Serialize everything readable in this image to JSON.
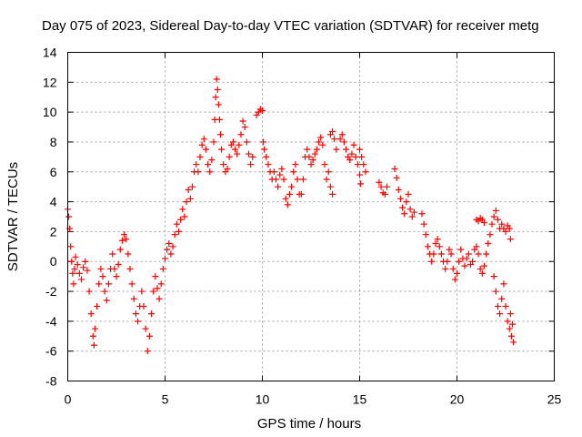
{
  "chart_data": {
    "type": "scatter",
    "title": "Day 075 of 2023, Sidereal Day-to-day VTEC variation (SDTVAR) for receiver metg",
    "xlabel": "GPS time / hours",
    "ylabel": "SDTVAR / TECUs",
    "xlim": [
      0,
      25
    ],
    "ylim": [
      -8,
      14
    ],
    "xticks": [
      0,
      5,
      10,
      15,
      20,
      25
    ],
    "yticks": [
      -8,
      -6,
      -4,
      -2,
      0,
      2,
      4,
      6,
      8,
      10,
      12,
      14
    ],
    "grid": true,
    "marker": "plus",
    "color": "#ff0000",
    "series": [
      {
        "name": "SDTVAR",
        "points": [
          [
            0.0,
            3.5
          ],
          [
            0.05,
            3.0
          ],
          [
            0.1,
            2.2
          ],
          [
            0.15,
            1.0
          ],
          [
            0.2,
            0.0
          ],
          [
            0.25,
            -0.8
          ],
          [
            0.3,
            -1.5
          ],
          [
            0.35,
            -0.5
          ],
          [
            0.4,
            0.3
          ],
          [
            0.5,
            -0.2
          ],
          [
            0.6,
            -0.8
          ],
          [
            0.7,
            -1.2
          ],
          [
            0.8,
            -0.4
          ],
          [
            0.9,
            0.0
          ],
          [
            1.0,
            -0.6
          ],
          [
            1.1,
            -2.0
          ],
          [
            1.2,
            -3.5
          ],
          [
            1.3,
            -5.0
          ],
          [
            1.35,
            -5.6
          ],
          [
            1.4,
            -4.5
          ],
          [
            1.5,
            -3.0
          ],
          [
            1.6,
            -1.5
          ],
          [
            1.7,
            -0.5
          ],
          [
            1.8,
            -1.0
          ],
          [
            1.9,
            -2.0
          ],
          [
            2.0,
            -2.6
          ],
          [
            2.1,
            -1.5
          ],
          [
            2.2,
            -0.5
          ],
          [
            2.3,
            0.5
          ],
          [
            2.4,
            -0.5
          ],
          [
            2.5,
            -1.0
          ],
          [
            2.6,
            -0.2
          ],
          [
            2.7,
            0.8
          ],
          [
            2.8,
            1.4
          ],
          [
            2.9,
            1.8
          ],
          [
            3.0,
            1.5
          ],
          [
            3.1,
            0.5
          ],
          [
            3.2,
            -0.5
          ],
          [
            3.3,
            -1.5
          ],
          [
            3.4,
            -2.5
          ],
          [
            3.5,
            -3.5
          ],
          [
            3.6,
            -4.0
          ],
          [
            3.7,
            -3.0
          ],
          [
            3.8,
            -2.0
          ],
          [
            3.9,
            -3.0
          ],
          [
            4.0,
            -4.5
          ],
          [
            4.1,
            -6.0
          ],
          [
            4.2,
            -5.0
          ],
          [
            4.3,
            -3.5
          ],
          [
            4.4,
            -2.0
          ],
          [
            4.5,
            -1.0
          ],
          [
            4.6,
            -1.8
          ],
          [
            4.7,
            -2.5
          ],
          [
            4.8,
            -1.5
          ],
          [
            4.9,
            -0.5
          ],
          [
            5.0,
            0.2
          ],
          [
            5.1,
            0.8
          ],
          [
            5.2,
            1.2
          ],
          [
            5.3,
            0.5
          ],
          [
            5.4,
            1.0
          ],
          [
            5.5,
            1.8
          ],
          [
            5.6,
            2.5
          ],
          [
            5.7,
            2.0
          ],
          [
            5.8,
            2.8
          ],
          [
            5.9,
            3.5
          ],
          [
            6.0,
            3.0
          ],
          [
            6.1,
            4.0
          ],
          [
            6.2,
            4.8
          ],
          [
            6.3,
            4.2
          ],
          [
            6.4,
            5.0
          ],
          [
            6.5,
            6.0
          ],
          [
            6.6,
            6.5
          ],
          [
            6.7,
            6.0
          ],
          [
            6.8,
            7.0
          ],
          [
            6.9,
            7.8
          ],
          [
            7.0,
            8.2
          ],
          [
            7.1,
            7.5
          ],
          [
            7.2,
            6.5
          ],
          [
            7.3,
            6.0
          ],
          [
            7.4,
            6.8
          ],
          [
            7.5,
            8.0
          ],
          [
            7.55,
            9.5
          ],
          [
            7.6,
            11.0
          ],
          [
            7.65,
            12.2
          ],
          [
            7.7,
            11.5
          ],
          [
            7.75,
            10.5
          ],
          [
            7.8,
            9.5
          ],
          [
            7.85,
            8.5
          ],
          [
            7.9,
            7.5
          ],
          [
            8.0,
            6.5
          ],
          [
            8.1,
            6.0
          ],
          [
            8.2,
            6.2
          ],
          [
            8.3,
            7.0
          ],
          [
            8.4,
            7.8
          ],
          [
            8.5,
            8.0
          ],
          [
            8.6,
            7.5
          ],
          [
            8.7,
            7.2
          ],
          [
            8.8,
            7.8
          ],
          [
            8.9,
            8.5
          ],
          [
            9.0,
            9.4
          ],
          [
            9.1,
            9.0
          ],
          [
            9.2,
            8.0
          ],
          [
            9.3,
            7.2
          ],
          [
            9.4,
            6.5
          ],
          [
            9.5,
            7.0
          ],
          [
            9.7,
            9.8
          ],
          [
            9.8,
            10.0
          ],
          [
            9.9,
            10.2
          ],
          [
            10.0,
            10.1
          ],
          [
            10.05,
            8.0
          ],
          [
            10.1,
            7.5
          ],
          [
            10.2,
            7.0
          ],
          [
            10.3,
            6.5
          ],
          [
            10.4,
            6.0
          ],
          [
            10.5,
            5.5
          ],
          [
            10.6,
            6.0
          ],
          [
            10.7,
            5.5
          ],
          [
            10.8,
            5.0
          ],
          [
            10.9,
            5.8
          ],
          [
            11.0,
            6.2
          ],
          [
            11.1,
            5.5
          ],
          [
            11.2,
            4.2
          ],
          [
            11.3,
            3.8
          ],
          [
            11.4,
            4.5
          ],
          [
            11.5,
            5.0
          ],
          [
            11.6,
            6.0
          ],
          [
            11.7,
            6.5
          ],
          [
            11.8,
            5.5
          ],
          [
            11.9,
            4.5
          ],
          [
            12.0,
            4.5
          ],
          [
            12.1,
            5.5
          ],
          [
            12.2,
            7.0
          ],
          [
            12.3,
            7.5
          ],
          [
            12.4,
            7.0
          ],
          [
            12.5,
            6.5
          ],
          [
            12.6,
            6.8
          ],
          [
            12.7,
            7.2
          ],
          [
            12.8,
            7.5
          ],
          [
            12.9,
            8.0
          ],
          [
            13.0,
            8.3
          ],
          [
            13.1,
            7.8
          ],
          [
            13.2,
            6.5
          ],
          [
            13.3,
            5.5
          ],
          [
            13.4,
            6.0
          ],
          [
            13.5,
            5.0
          ],
          [
            13.6,
            4.5
          ],
          [
            13.5,
            8.5
          ],
          [
            13.6,
            8.7
          ],
          [
            13.7,
            8.2
          ],
          [
            13.8,
            7.5
          ],
          [
            14.0,
            8.2
          ],
          [
            14.1,
            8.5
          ],
          [
            14.2,
            8.0
          ],
          [
            14.3,
            7.5
          ],
          [
            14.4,
            7.0
          ],
          [
            14.5,
            6.8
          ],
          [
            14.6,
            7.2
          ],
          [
            14.7,
            7.8
          ],
          [
            14.8,
            7.0
          ],
          [
            14.9,
            6.5
          ],
          [
            15.0,
            5.8
          ],
          [
            15.05,
            5.2
          ],
          [
            15.0,
            7.5
          ],
          [
            15.1,
            7.0
          ],
          [
            15.2,
            6.5
          ],
          [
            15.3,
            6.0
          ],
          [
            16.0,
            5.3
          ],
          [
            16.1,
            5.0
          ],
          [
            16.2,
            4.6
          ],
          [
            16.3,
            4.5
          ],
          [
            16.4,
            5.0
          ],
          [
            16.8,
            6.2
          ],
          [
            16.9,
            5.6
          ],
          [
            17.0,
            4.8
          ],
          [
            17.1,
            4.2
          ],
          [
            17.2,
            3.6
          ],
          [
            17.3,
            3.2
          ],
          [
            17.4,
            4.0
          ],
          [
            17.5,
            4.5
          ],
          [
            17.6,
            3.5
          ],
          [
            17.7,
            3.0
          ],
          [
            17.8,
            3.3
          ],
          [
            18.2,
            3.2
          ],
          [
            18.3,
            2.5
          ],
          [
            18.4,
            1.8
          ],
          [
            18.5,
            1.0
          ],
          [
            18.6,
            0.5
          ],
          [
            18.7,
            0.0
          ],
          [
            18.8,
            0.5
          ],
          [
            18.9,
            1.2
          ],
          [
            19.0,
            1.5
          ],
          [
            19.1,
            1.0
          ],
          [
            19.2,
            0.5
          ],
          [
            19.3,
            0.0
          ],
          [
            19.4,
            -0.5
          ],
          [
            19.5,
            0.0
          ],
          [
            19.6,
            0.8
          ],
          [
            19.7,
            0.5
          ],
          [
            19.8,
            -0.5
          ],
          [
            19.9,
            -1.2
          ],
          [
            20.0,
            -0.8
          ],
          [
            20.1,
            0.0
          ],
          [
            20.2,
            0.8
          ],
          [
            20.3,
            0.2
          ],
          [
            20.4,
            -0.3
          ],
          [
            20.5,
            0.2
          ],
          [
            20.6,
            0.5
          ],
          [
            20.7,
            -0.2
          ],
          [
            20.8,
            0.0
          ],
          [
            20.9,
            0.8
          ],
          [
            21.0,
            1.0
          ],
          [
            21.1,
            0.5
          ],
          [
            21.2,
            -0.5
          ],
          [
            21.3,
            -0.8
          ],
          [
            21.4,
            -0.3
          ],
          [
            21.5,
            0.5
          ],
          [
            21.6,
            1.2
          ],
          [
            21.7,
            1.8
          ],
          [
            21.8,
            2.5
          ],
          [
            21.9,
            3.0
          ],
          [
            22.0,
            3.4
          ],
          [
            22.1,
            2.8
          ],
          [
            22.2,
            2.2
          ],
          [
            22.3,
            2.5
          ],
          [
            22.4,
            2.2
          ],
          [
            22.5,
            2.0
          ],
          [
            22.6,
            2.4
          ],
          [
            22.7,
            2.2
          ],
          [
            22.75,
            1.5
          ],
          [
            21.0,
            2.8
          ],
          [
            21.1,
            2.7
          ],
          [
            21.2,
            2.9
          ],
          [
            21.3,
            2.8
          ],
          [
            21.4,
            2.6
          ],
          [
            21.9,
            -1.0
          ],
          [
            22.0,
            -2.0
          ],
          [
            22.1,
            -3.0
          ],
          [
            22.2,
            -3.5
          ],
          [
            22.3,
            -2.5
          ],
          [
            22.4,
            -1.5
          ],
          [
            22.5,
            -3.0
          ],
          [
            22.6,
            -4.0
          ],
          [
            22.7,
            -4.5
          ],
          [
            22.8,
            -5.0
          ],
          [
            22.9,
            -5.4
          ],
          [
            22.85,
            -4.2
          ],
          [
            22.75,
            -3.5
          ]
        ]
      }
    ]
  }
}
